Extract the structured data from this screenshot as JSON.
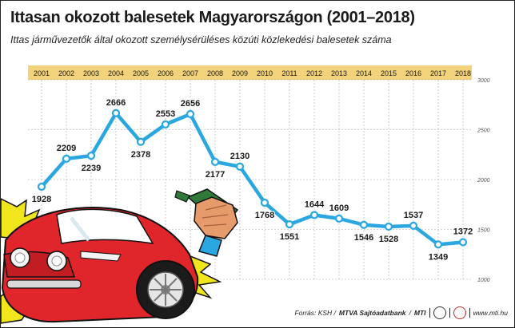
{
  "header": {
    "title": "Ittasan okozott balesetek Magyarországon (2001–2018)",
    "subtitle": "Ittas járművezetők által okozott személysérüléses közúti közlekedési balesetek száma"
  },
  "footer": {
    "source_label": "Forrás: KSH /",
    "agency": "MTVA Sajtóadatbank",
    "sep": "/",
    "mti": "MTI",
    "website": "www.mti.hu",
    "logo_mti_icon": "mti-logo-icon",
    "logo_mtva_icon": "mtva-logo-icon"
  },
  "colors": {
    "line": "#2aa7e0",
    "marker_fill": "#ffffff",
    "year_band": "#f2d27a",
    "grid": "#a9a9a9",
    "text": "#1a1a1a",
    "car_red": "#e0262b",
    "flash_yellow": "#f1e51c",
    "bottle_green": "#2f7a38"
  },
  "chart_data": {
    "type": "line",
    "title": "Ittasan okozott balesetek Magyarországon (2001–2018)",
    "subtitle": "Ittas járművezetők által okozott személysérüléses közúti közlekedési balesetek száma",
    "xlabel": "",
    "ylabel": "",
    "categories": [
      "2001",
      "2002",
      "2003",
      "2004",
      "2005",
      "2006",
      "2007",
      "2008",
      "2009",
      "2010",
      "2011",
      "2012",
      "2013",
      "2014",
      "2015",
      "2016",
      "2017",
      "2018"
    ],
    "series": [
      {
        "values": [
          1928,
          2209,
          2239,
          2666,
          2378,
          2553,
          2656,
          2177,
          2130,
          1768,
          1551,
          1644,
          1609,
          1546,
          1528,
          1537,
          1349,
          1372
        ]
      }
    ],
    "ylim": [
      1000,
      3000
    ],
    "yticks": [
      1000,
      1500,
      2000,
      2500,
      3000
    ],
    "ytick_labels": [
      "1000",
      "1500",
      "2000",
      "2500",
      "3000"
    ],
    "grid": true,
    "xaxis_position": "top",
    "yaxis_position": "right",
    "data_labels": true
  }
}
